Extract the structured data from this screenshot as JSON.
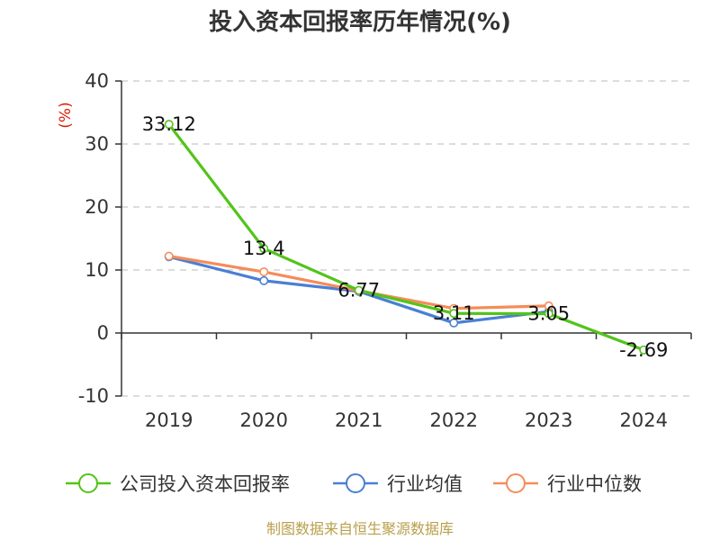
{
  "chart_data": {
    "type": "line",
    "title": "投入资本回报率历年情况(%)",
    "ylabel": "(%)",
    "xlabel": "",
    "categories": [
      "2019",
      "2020",
      "2021",
      "2022",
      "2023",
      "2024"
    ],
    "ylim": [
      -10,
      40
    ],
    "yticks": [
      -10,
      0,
      10,
      20,
      30,
      40
    ],
    "grid": true,
    "legend_position": "bottom",
    "series": [
      {
        "name": "公司投入资本回报率",
        "color": "#52c41a",
        "values": [
          33.12,
          13.4,
          6.77,
          3.11,
          3.05,
          -2.69
        ],
        "data_labels": [
          "33.12",
          "13.4",
          "6.77",
          "3.11",
          "3.05",
          "-2.69"
        ]
      },
      {
        "name": "行业均值",
        "color": "#4a7fd4",
        "values": [
          12.1,
          8.3,
          6.6,
          1.6,
          3.4,
          null
        ]
      },
      {
        "name": "行业中位数",
        "color": "#f58c5a",
        "values": [
          12.2,
          9.7,
          6.7,
          3.9,
          4.3,
          null
        ]
      }
    ]
  },
  "footer": {
    "source": "制图数据来自恒生聚源数据库"
  }
}
